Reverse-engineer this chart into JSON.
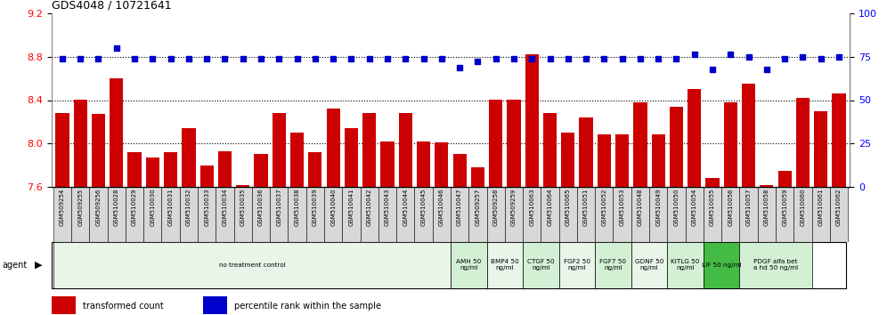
{
  "title": "GDS4048 / 10721641",
  "categories": [
    "GSM509254",
    "GSM509255",
    "GSM509256",
    "GSM510028",
    "GSM510029",
    "GSM510030",
    "GSM510031",
    "GSM510032",
    "GSM510033",
    "GSM510034",
    "GSM510035",
    "GSM510036",
    "GSM510037",
    "GSM510038",
    "GSM510039",
    "GSM510040",
    "GSM510041",
    "GSM510042",
    "GSM510043",
    "GSM510044",
    "GSM510045",
    "GSM510046",
    "GSM510047",
    "GSM509257",
    "GSM509258",
    "GSM509259",
    "GSM510063",
    "GSM510064",
    "GSM510065",
    "GSM510051",
    "GSM510052",
    "GSM510053",
    "GSM510048",
    "GSM510049",
    "GSM510050",
    "GSM510054",
    "GSM510055",
    "GSM510056",
    "GSM510057",
    "GSM510058",
    "GSM510059",
    "GSM510060",
    "GSM510061",
    "GSM510062"
  ],
  "bar_values": [
    8.28,
    8.4,
    8.27,
    8.6,
    7.92,
    7.87,
    7.92,
    8.14,
    7.8,
    7.93,
    7.62,
    7.9,
    8.28,
    8.1,
    7.92,
    8.32,
    8.14,
    8.28,
    8.02,
    8.28,
    8.02,
    8.01,
    7.9,
    7.78,
    8.4,
    8.4,
    8.82,
    8.28,
    8.1,
    8.24,
    8.08,
    8.08,
    8.38,
    8.08,
    8.34,
    8.5,
    7.68,
    8.38,
    8.55,
    7.62,
    7.75,
    8.42,
    8.3,
    8.46
  ],
  "blue_values": [
    8.78,
    8.78,
    8.78,
    8.88,
    8.78,
    8.78,
    8.78,
    8.78,
    8.78,
    8.78,
    8.78,
    8.78,
    8.78,
    8.78,
    8.78,
    8.78,
    8.78,
    8.78,
    8.78,
    8.78,
    8.78,
    8.78,
    8.7,
    8.76,
    8.78,
    8.78,
    8.78,
    8.78,
    8.78,
    8.78,
    8.78,
    8.78,
    8.78,
    8.78,
    8.78,
    8.82,
    8.68,
    8.82,
    8.8,
    8.68,
    8.78,
    8.8,
    8.78,
    8.8
  ],
  "bar_color": "#CC0000",
  "blue_color": "#0000CC",
  "ylim_left": [
    7.6,
    9.2
  ],
  "ylim_right": [
    0,
    100
  ],
  "yticks_left": [
    7.6,
    8.0,
    8.4,
    8.8,
    9.2
  ],
  "yticks_right": [
    0,
    25,
    50,
    75,
    100
  ],
  "grid_values": [
    8.0,
    8.4,
    8.8
  ],
  "agent_groups": [
    {
      "label": "no treatment control",
      "count": 22,
      "bg": "#e8f5e8"
    },
    {
      "label": "AMH 50\nng/ml",
      "count": 2,
      "bg": "#d4f0d4"
    },
    {
      "label": "BMP4 50\nng/ml",
      "count": 2,
      "bg": "#e8f5e8"
    },
    {
      "label": "CTGF 50\nng/ml",
      "count": 2,
      "bg": "#d4f0d4"
    },
    {
      "label": "FGF2 50\nng/ml",
      "count": 2,
      "bg": "#e8f5e8"
    },
    {
      "label": "FGF7 50\nng/ml",
      "count": 2,
      "bg": "#d4f0d4"
    },
    {
      "label": "GDNF 50\nng/ml",
      "count": 2,
      "bg": "#e8f5e8"
    },
    {
      "label": "KITLG 50\nng/ml",
      "count": 2,
      "bg": "#d4f0d4"
    },
    {
      "label": "LIF 50 ng/ml",
      "count": 2,
      "bg": "#44bb44"
    },
    {
      "label": "PDGF alfa bet\na hd 50 ng/ml",
      "count": 4,
      "bg": "#d4f0d4"
    }
  ],
  "legend_items": [
    {
      "label": "transformed count",
      "color": "#CC0000"
    },
    {
      "label": "percentile rank within the sample",
      "color": "#0000CC"
    }
  ],
  "fig_width": 9.96,
  "fig_height": 3.54,
  "dpi": 100
}
